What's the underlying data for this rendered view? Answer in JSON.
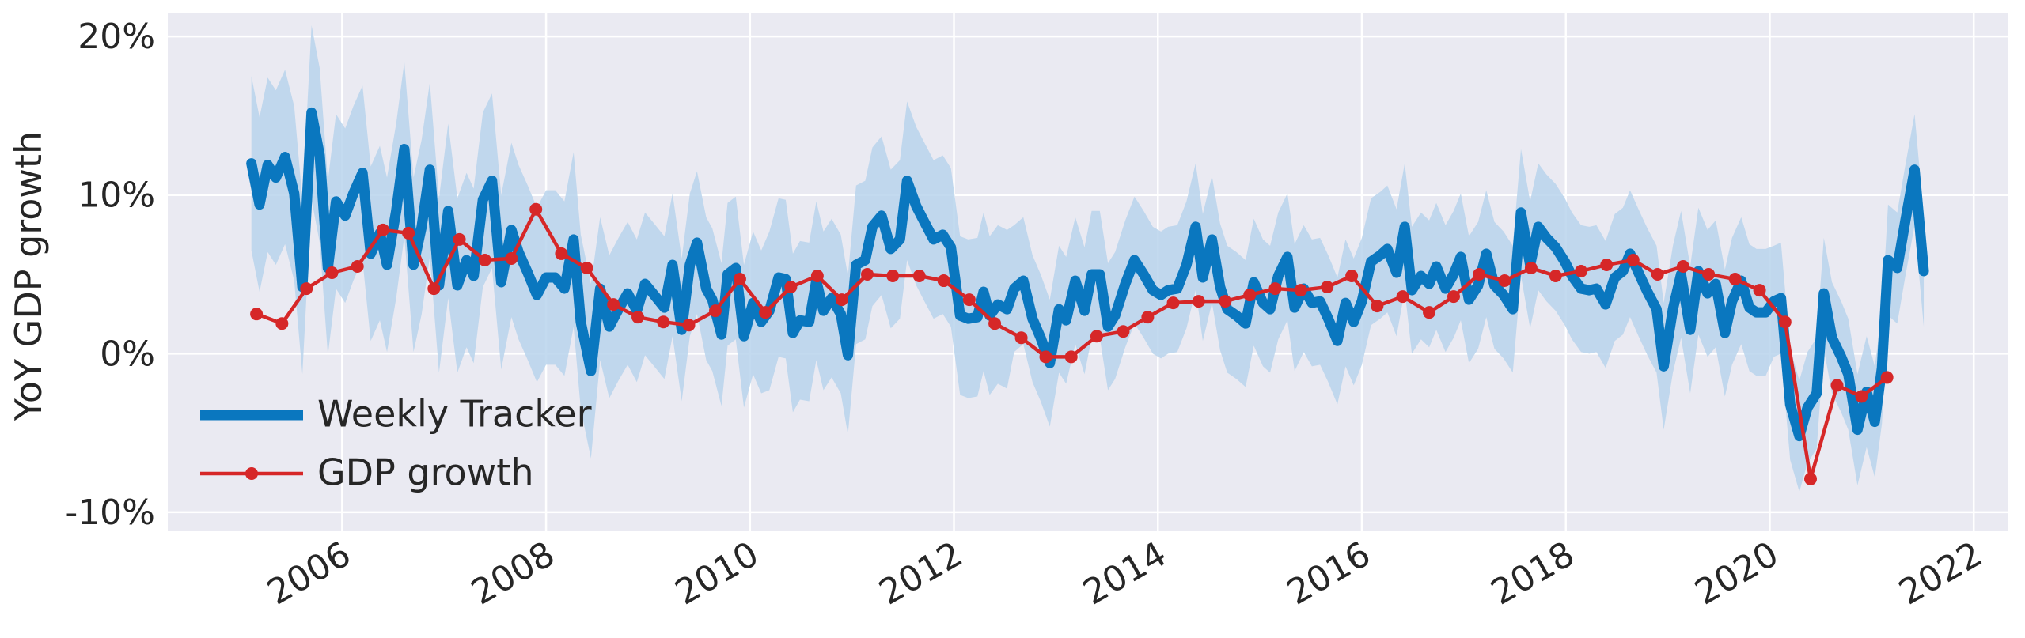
{
  "chart_data": {
    "type": "line",
    "ylabel": "YoY GDP growth",
    "xlim": [
      2004.29,
      2022.34
    ],
    "xticks": [
      2006,
      2008,
      2010,
      2012,
      2014,
      2016,
      2018,
      2020,
      2022
    ],
    "ylim": [
      -11.2,
      21.5
    ],
    "yticks": [
      {
        "value": -10,
        "label": "-10%"
      },
      {
        "value": 0,
        "label": "0%"
      },
      {
        "value": 10,
        "label": "10%"
      },
      {
        "value": 20,
        "label": "20%"
      }
    ],
    "grid": true,
    "legend": "lower left",
    "series": [
      {
        "name": "Weekly Tracker",
        "color": "#0a77bf",
        "band_color": "#b9d3ec",
        "x": [
          2005.11,
          2005.19,
          2005.27,
          2005.35,
          2005.44,
          2005.53,
          2005.61,
          2005.7,
          2005.78,
          2005.86,
          2005.94,
          2006.03,
          2006.11,
          2006.2,
          2006.28,
          2006.37,
          2006.44,
          2006.53,
          2006.61,
          2006.7,
          2006.78,
          2006.86,
          2006.95,
          2007.04,
          2007.13,
          2007.22,
          2007.29,
          2007.38,
          2007.47,
          2007.56,
          2007.66,
          2007.73,
          2007.82,
          2007.91,
          2008.0,
          2008.09,
          2008.18,
          2008.27,
          2008.34,
          2008.44,
          2008.53,
          2008.62,
          2008.71,
          2008.8,
          2008.89,
          2008.97,
          2009.06,
          2009.16,
          2009.24,
          2009.33,
          2009.41,
          2009.48,
          2009.57,
          2009.63,
          2009.72,
          2009.78,
          2009.86,
          2009.94,
          2010.03,
          2010.11,
          2010.19,
          2010.28,
          2010.35,
          2010.42,
          2010.49,
          2010.58,
          2010.65,
          2010.72,
          2010.8,
          2010.89,
          2010.96,
          2011.04,
          2011.13,
          2011.2,
          2011.29,
          2011.38,
          2011.47,
          2011.54,
          2011.63,
          2011.71,
          2011.8,
          2011.89,
          2011.97,
          2012.06,
          2012.14,
          2012.23,
          2012.29,
          2012.35,
          2012.43,
          2012.52,
          2012.59,
          2012.68,
          2012.77,
          2012.85,
          2012.94,
          2013.03,
          2013.1,
          2013.19,
          2013.28,
          2013.35,
          2013.43,
          2013.51,
          2013.58,
          2013.68,
          2013.77,
          2013.86,
          2013.95,
          2014.03,
          2014.1,
          2014.19,
          2014.28,
          2014.37,
          2014.44,
          2014.53,
          2014.61,
          2014.68,
          2014.77,
          2014.86,
          2014.94,
          2015.03,
          2015.1,
          2015.18,
          2015.27,
          2015.34,
          2015.43,
          2015.51,
          2015.59,
          2015.67,
          2015.76,
          2015.84,
          2015.92,
          2016.0,
          2016.09,
          2016.18,
          2016.25,
          2016.34,
          2016.42,
          2016.49,
          2016.58,
          2016.66,
          2016.73,
          2016.82,
          2016.9,
          2016.97,
          2017.05,
          2017.14,
          2017.22,
          2017.3,
          2017.39,
          2017.48,
          2017.56,
          2017.65,
          2017.73,
          2017.81,
          2017.9,
          2017.99,
          2018.06,
          2018.15,
          2018.23,
          2018.3,
          2018.39,
          2018.48,
          2018.56,
          2018.63,
          2018.72,
          2018.8,
          2018.89,
          2018.96,
          2019.05,
          2019.13,
          2019.22,
          2019.3,
          2019.39,
          2019.47,
          2019.56,
          2019.63,
          2019.72,
          2019.8,
          2019.87,
          2019.96,
          2020.04,
          2020.11,
          2020.2,
          2020.29,
          2020.37,
          2020.46,
          2020.53,
          2020.61,
          2020.7,
          2020.77,
          2020.86,
          2020.95,
          2021.03,
          2021.1,
          2021.16,
          2021.25,
          2021.33,
          2021.42,
          2021.51
        ],
        "values": [
          12.0,
          9.4,
          11.9,
          11.1,
          12.4,
          10.1,
          4.2,
          15.2,
          12.5,
          5.4,
          9.6,
          8.7,
          10.1,
          11.4,
          6.3,
          7.6,
          5.6,
          9.0,
          12.9,
          5.6,
          8.0,
          11.6,
          4.3,
          9.0,
          4.3,
          5.9,
          4.9,
          9.7,
          10.9,
          4.5,
          7.8,
          6.4,
          5.1,
          3.7,
          4.8,
          4.8,
          4.1,
          7.2,
          2.0,
          -1.1,
          4.1,
          1.7,
          2.8,
          3.8,
          2.7,
          4.4,
          3.7,
          2.9,
          5.6,
          1.5,
          5.6,
          7.0,
          4.1,
          3.4,
          1.2,
          5.0,
          5.4,
          1.1,
          3.2,
          2.0,
          2.7,
          4.8,
          4.7,
          1.3,
          2.1,
          2.0,
          4.6,
          2.7,
          3.5,
          2.5,
          -0.1,
          5.6,
          5.9,
          8.0,
          8.7,
          6.6,
          7.2,
          10.9,
          9.3,
          8.3,
          7.2,
          7.5,
          6.7,
          2.4,
          2.2,
          2.3,
          3.9,
          2.4,
          3.1,
          2.8,
          4.1,
          4.6,
          2.2,
          1.0,
          -0.6,
          2.8,
          2.1,
          4.6,
          2.7,
          5.0,
          5.0,
          1.7,
          2.4,
          4.4,
          5.9,
          5.0,
          4.0,
          3.7,
          4.0,
          4.1,
          5.6,
          8.0,
          4.8,
          7.2,
          4.2,
          2.8,
          2.4,
          1.9,
          4.5,
          3.2,
          2.8,
          4.9,
          6.1,
          2.9,
          4.1,
          3.2,
          3.3,
          2.2,
          0.8,
          3.2,
          2.0,
          3.3,
          5.8,
          6.2,
          6.6,
          5.1,
          8.0,
          4.0,
          4.9,
          4.4,
          5.5,
          4.1,
          5.0,
          6.1,
          3.4,
          4.3,
          6.3,
          4.3,
          3.7,
          2.8,
          8.9,
          5.6,
          8.0,
          7.3,
          6.7,
          5.8,
          4.9,
          4.1,
          4.0,
          4.1,
          3.1,
          4.8,
          5.2,
          6.3,
          5.0,
          3.9,
          2.8,
          -0.8,
          2.8,
          5.0,
          1.5,
          5.2,
          3.8,
          4.4,
          1.3,
          3.3,
          4.6,
          2.9,
          2.6,
          2.6,
          3.3,
          3.5,
          -3.2,
          -5.2,
          -3.4,
          -2.5,
          3.8,
          1.0,
          -0.2,
          -1.3,
          -4.8,
          -2.4,
          -4.3,
          -0.9,
          5.9,
          5.4,
          8.4,
          11.6,
          5.2
        ],
        "error": [
          5.5,
          5.5,
          5.5,
          5.5,
          5.5,
          5.5,
          5.5,
          5.5,
          5.5,
          5.5,
          5.5,
          5.5,
          5.5,
          5.5,
          5.5,
          5.5,
          5.5,
          5.5,
          5.5,
          5.5,
          5.5,
          5.5,
          5.5,
          5.5,
          5.5,
          5.5,
          5.5,
          5.5,
          5.5,
          5.5,
          5.5,
          5.5,
          5.5,
          5.5,
          5.5,
          5.5,
          5.5,
          5.5,
          5.5,
          5.5,
          4.5,
          4.5,
          4.5,
          4.5,
          4.5,
          4.5,
          4.5,
          4.5,
          4.5,
          4.5,
          4.5,
          4.5,
          4.5,
          4.5,
          4.5,
          4.5,
          4.5,
          4.5,
          4.5,
          4.5,
          5,
          5,
          5,
          5,
          5,
          5,
          5,
          5,
          5,
          5,
          5,
          5,
          5,
          5,
          5,
          5,
          5,
          5,
          5,
          5,
          5,
          5,
          5,
          5,
          5,
          5,
          5,
          5,
          5,
          5,
          4,
          4,
          4,
          4,
          4,
          4,
          4,
          4,
          4,
          4,
          4,
          4,
          4,
          4,
          4,
          4,
          4,
          4,
          4,
          4,
          4,
          4,
          4,
          4,
          4,
          4,
          4,
          4,
          4,
          4,
          4,
          4,
          4,
          4,
          4,
          4,
          4,
          4,
          4,
          4,
          4,
          4,
          4,
          4,
          4,
          4,
          4,
          4,
          4,
          4,
          4,
          4,
          4,
          4,
          4,
          4,
          4,
          4,
          4,
          4,
          4,
          4,
          4,
          4,
          4,
          4,
          4,
          4,
          4,
          4,
          4,
          4,
          4,
          4,
          4,
          4,
          4,
          4,
          4,
          4,
          4,
          4,
          4,
          4,
          4,
          4,
          4,
          4,
          4,
          4,
          3.5,
          3.5,
          3.5,
          3.5,
          3.5,
          3.5,
          3.5,
          3.5,
          3.5,
          3.5,
          3.5,
          3.5,
          3.5,
          3.5,
          3.5,
          3.5,
          3.5,
          3.5,
          3.5
        ]
      },
      {
        "name": "GDP growth",
        "color": "#d62728",
        "marker": true,
        "x": [
          2005.16,
          2005.41,
          2005.65,
          2005.9,
          2006.15,
          2006.4,
          2006.65,
          2006.9,
          2007.15,
          2007.4,
          2007.66,
          2007.9,
          2008.15,
          2008.4,
          2008.66,
          2008.9,
          2009.15,
          2009.4,
          2009.66,
          2009.9,
          2010.15,
          2010.4,
          2010.66,
          2010.9,
          2011.15,
          2011.4,
          2011.66,
          2011.9,
          2012.15,
          2012.4,
          2012.66,
          2012.9,
          2013.15,
          2013.4,
          2013.66,
          2013.9,
          2014.15,
          2014.4,
          2014.66,
          2014.9,
          2015.15,
          2015.4,
          2015.66,
          2015.9,
          2016.15,
          2016.4,
          2016.66,
          2016.9,
          2017.15,
          2017.4,
          2017.66,
          2017.9,
          2018.15,
          2018.4,
          2018.66,
          2018.9,
          2019.15,
          2019.4,
          2019.66,
          2019.9,
          2020.15,
          2020.4,
          2020.66,
          2020.9,
          2021.15
        ],
        "values": [
          2.5,
          1.9,
          4.1,
          5.1,
          5.5,
          7.8,
          7.6,
          4.1,
          7.2,
          5.9,
          6.0,
          9.1,
          6.3,
          5.4,
          3.1,
          2.3,
          2.0,
          1.8,
          2.7,
          4.7,
          2.6,
          4.2,
          4.9,
          3.4,
          5.0,
          4.9,
          4.9,
          4.6,
          3.4,
          1.9,
          1.0,
          -0.2,
          -0.2,
          1.1,
          1.4,
          2.3,
          3.2,
          3.3,
          3.3,
          3.7,
          4.1,
          4.0,
          4.2,
          4.9,
          3.0,
          3.6,
          2.6,
          3.6,
          5.0,
          4.6,
          5.4,
          4.9,
          5.2,
          5.6,
          5.9,
          5.0,
          5.5,
          5.0,
          4.7,
          4.0,
          2.0,
          -7.9,
          -2.0,
          -2.7,
          -1.5
        ]
      }
    ]
  }
}
